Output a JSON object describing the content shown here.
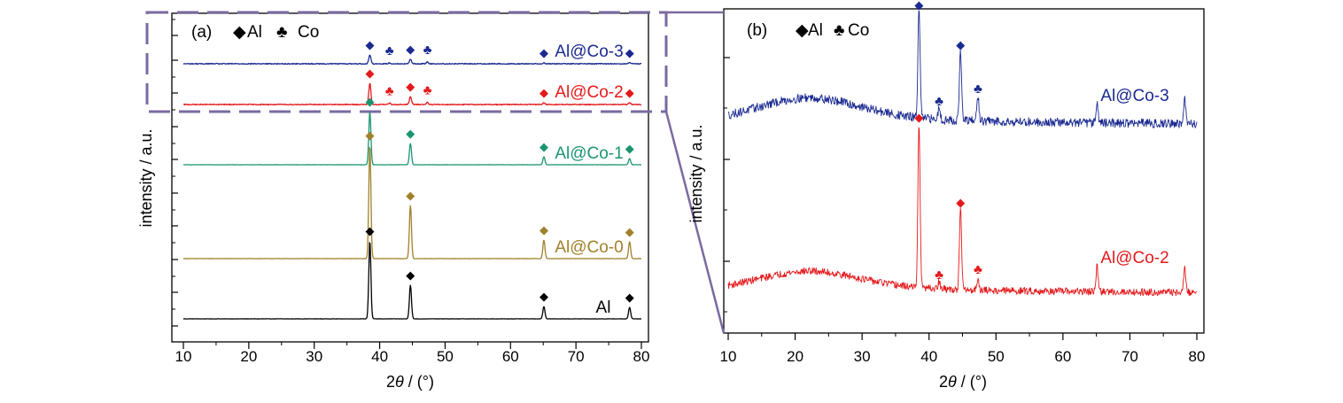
{
  "chart_data": [
    {
      "type": "line",
      "panel_label": "(a)",
      "xlabel_prefix": "2",
      "xlabel_theta": "θ",
      "xlabel_suffix": " / (°)",
      "ylabel": "intensity / a.u.",
      "xlim": [
        10,
        80
      ],
      "xticks": [
        10,
        20,
        30,
        40,
        50,
        60,
        70,
        80
      ],
      "y_ticks_shown": false,
      "legend": [
        {
          "symbol": "◆",
          "label": "Al"
        },
        {
          "symbol": "♣",
          "label": "Co"
        }
      ],
      "series": [
        {
          "name": "Al",
          "color": "#000000",
          "offset": 0,
          "noise": 0.15,
          "peaks": [
            [
              38.5,
              88
            ],
            [
              44.7,
              38
            ],
            [
              65.1,
              14
            ],
            [
              78.2,
              13
            ]
          ]
        },
        {
          "name": "Al@Co-0",
          "color": "#a0802a",
          "offset": 68,
          "noise": 0.15,
          "peaks": [
            [
              38.5,
              128
            ],
            [
              44.7,
              60
            ],
            [
              65.1,
              21
            ],
            [
              78.2,
              19
            ]
          ]
        },
        {
          "name": "Al@Co-1",
          "color": "#1a9570",
          "offset": 174,
          "noise": 0.15,
          "peaks": [
            [
              38.5,
              60
            ],
            [
              44.7,
              24
            ],
            [
              65.1,
              9
            ],
            [
              78.2,
              7
            ]
          ]
        },
        {
          "name": "Al@Co-2",
          "color": "#e4191b",
          "offset": 242,
          "noise": 0.5,
          "peaks": [
            [
              38.5,
              24
            ],
            [
              44.7,
              9
            ],
            [
              41.5,
              1.5
            ],
            [
              47.3,
              2.5
            ],
            [
              65.1,
              2
            ],
            [
              78.2,
              2
            ]
          ]
        },
        {
          "name": "Al@Co-3",
          "color": "#1a2a90",
          "offset": 288,
          "noise": 0.5,
          "peaks": [
            [
              38.5,
              10
            ],
            [
              44.7,
              5
            ],
            [
              41.5,
              1
            ],
            [
              47.3,
              2
            ],
            [
              65.1,
              1
            ],
            [
              78.2,
              1
            ]
          ]
        }
      ],
      "markers": [
        {
          "series": "Al",
          "x": 38.5,
          "type": "Al"
        },
        {
          "series": "Al",
          "x": 44.7,
          "type": "Al"
        },
        {
          "series": "Al",
          "x": 65.1,
          "type": "Al"
        },
        {
          "series": "Al",
          "x": 78.2,
          "type": "Al"
        },
        {
          "series": "Al@Co-0",
          "x": 38.5,
          "type": "Al"
        },
        {
          "series": "Al@Co-0",
          "x": 44.7,
          "type": "Al"
        },
        {
          "series": "Al@Co-0",
          "x": 65.1,
          "type": "Al"
        },
        {
          "series": "Al@Co-0",
          "x": 78.2,
          "type": "Al"
        },
        {
          "series": "Al@Co-1",
          "x": 38.5,
          "type": "Al"
        },
        {
          "series": "Al@Co-1",
          "x": 44.7,
          "type": "Al"
        },
        {
          "series": "Al@Co-1",
          "x": 65.1,
          "type": "Al"
        },
        {
          "series": "Al@Co-1",
          "x": 78.2,
          "type": "Al"
        },
        {
          "series": "Al@Co-2",
          "x": 38.5,
          "type": "Al"
        },
        {
          "series": "Al@Co-2",
          "x": 41.5,
          "type": "Co"
        },
        {
          "series": "Al@Co-2",
          "x": 44.7,
          "type": "Al"
        },
        {
          "series": "Al@Co-2",
          "x": 47.3,
          "type": "Co"
        },
        {
          "series": "Al@Co-2",
          "x": 65.1,
          "type": "Al"
        },
        {
          "series": "Al@Co-2",
          "x": 78.2,
          "type": "Al"
        },
        {
          "series": "Al@Co-3",
          "x": 38.5,
          "type": "Al"
        },
        {
          "series": "Al@Co-3",
          "x": 41.5,
          "type": "Co"
        },
        {
          "series": "Al@Co-3",
          "x": 44.7,
          "type": "Al"
        },
        {
          "series": "Al@Co-3",
          "x": 47.3,
          "type": "Co"
        },
        {
          "series": "Al@Co-3",
          "x": 65.1,
          "type": "Al"
        },
        {
          "series": "Al@Co-3",
          "x": 78.2,
          "type": "Al"
        }
      ]
    },
    {
      "type": "line",
      "panel_label": "(b)",
      "xlabel_prefix": "2",
      "xlabel_theta": "θ",
      "xlabel_suffix": " / (°)",
      "ylabel": "intensity / a.u.",
      "xlim": [
        10,
        80
      ],
      "xticks": [
        10,
        20,
        30,
        40,
        50,
        60,
        70,
        80
      ],
      "y_ticks_shown": false,
      "legend": [
        {
          "symbol": "◆",
          "label": "Al"
        },
        {
          "symbol": "♣",
          "label": "Co"
        }
      ],
      "series": [
        {
          "name": "Al@Co-2",
          "color": "#e4191b",
          "offset": 0,
          "noise": 4,
          "amorphous_hump": 18,
          "peaks": [
            [
              38.5,
              188
            ],
            [
              44.7,
              92
            ],
            [
              41.5,
              8
            ],
            [
              47.3,
              14
            ],
            [
              65.1,
              28
            ],
            [
              78.2,
              27
            ]
          ]
        },
        {
          "name": "Al@Co-3",
          "color": "#1a2a90",
          "offset": 190,
          "noise": 5,
          "amorphous_hump": 22,
          "peaks": [
            [
              38.5,
              125
            ],
            [
              44.7,
              80
            ],
            [
              41.5,
              14
            ],
            [
              47.3,
              28
            ],
            [
              65.1,
              25
            ],
            [
              78.2,
              26
            ]
          ]
        }
      ],
      "markers": [
        {
          "series": "Al@Co-2",
          "x": 38.5,
          "type": "Al"
        },
        {
          "series": "Al@Co-2",
          "x": 41.5,
          "type": "Co"
        },
        {
          "series": "Al@Co-2",
          "x": 44.7,
          "type": "Al"
        },
        {
          "series": "Al@Co-2",
          "x": 47.3,
          "type": "Co"
        },
        {
          "series": "Al@Co-3",
          "x": 38.5,
          "type": "Al"
        },
        {
          "series": "Al@Co-3",
          "x": 41.5,
          "type": "Co"
        },
        {
          "series": "Al@Co-3",
          "x": 44.7,
          "type": "Al"
        },
        {
          "series": "Al@Co-3",
          "x": 47.3,
          "type": "Co"
        }
      ]
    }
  ]
}
